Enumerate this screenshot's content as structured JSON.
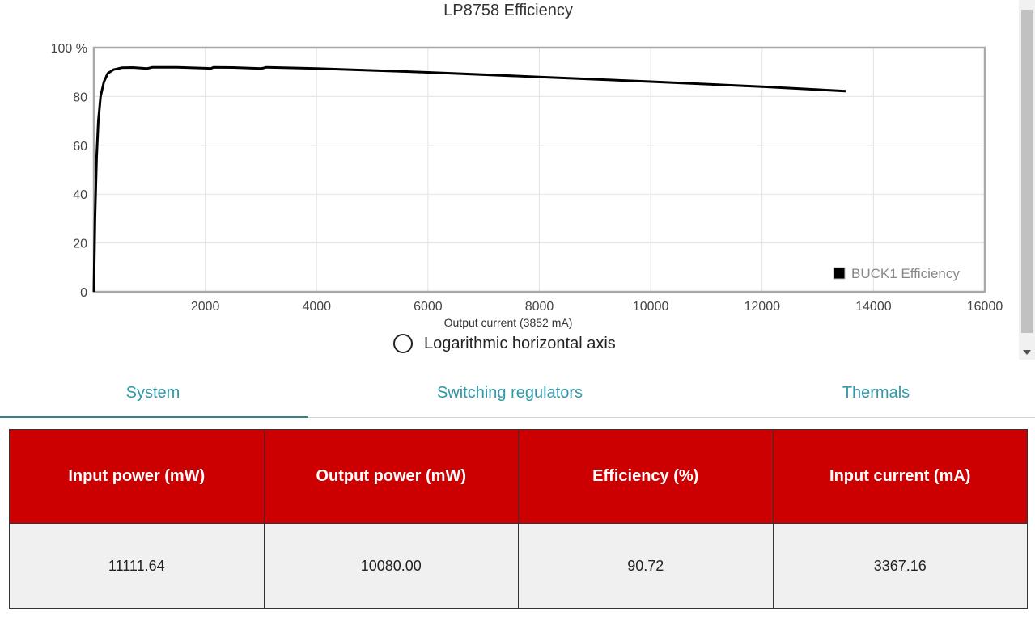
{
  "chart_data": {
    "type": "line",
    "title": "LP8758 Efficiency",
    "xlabel": "Output current (3852 mA)",
    "ylabel": "",
    "xlim": [
      0,
      16000
    ],
    "ylim": [
      0,
      100
    ],
    "x_ticks": [
      "2000",
      "4000",
      "6000",
      "8000",
      "10000",
      "12000",
      "14000",
      "16000"
    ],
    "y_ticks": [
      "0",
      "20",
      "40",
      "60",
      "80",
      "100 %"
    ],
    "grid": true,
    "legend_position": "bottom-right",
    "series": [
      {
        "name": "BUCK1 Efficiency",
        "color": "#000000",
        "x": [
          0,
          20,
          50,
          80,
          120,
          180,
          250,
          350,
          500,
          700,
          950,
          1000,
          1050,
          1500,
          2000,
          2100,
          2150,
          2500,
          3000,
          3050,
          3100,
          4000,
          6000,
          8000,
          10000,
          12000,
          13500
        ],
        "y": [
          0,
          30,
          55,
          70,
          80,
          86,
          89.5,
          91,
          91.8,
          91.9,
          91.5,
          91.7,
          92,
          92,
          91.6,
          91.5,
          92,
          91.9,
          91.5,
          91.7,
          92,
          91.5,
          89.9,
          88,
          86.1,
          84,
          82.2
        ]
      }
    ]
  },
  "log_toggle": {
    "label": "Logarithmic horizontal axis"
  },
  "tabs": [
    {
      "label": "System"
    },
    {
      "label": "Switching regulators"
    },
    {
      "label": "Thermals"
    }
  ],
  "table": {
    "headers": [
      "Input power (mW)",
      "Output power (mW)",
      "Efficiency (%)",
      "Input current (mA)"
    ],
    "rows": [
      [
        "11111.64",
        "10080.00",
        "90.72",
        "3367.16"
      ]
    ]
  },
  "colors": {
    "accent": "#3098a8",
    "header_red": "#cc0000"
  }
}
